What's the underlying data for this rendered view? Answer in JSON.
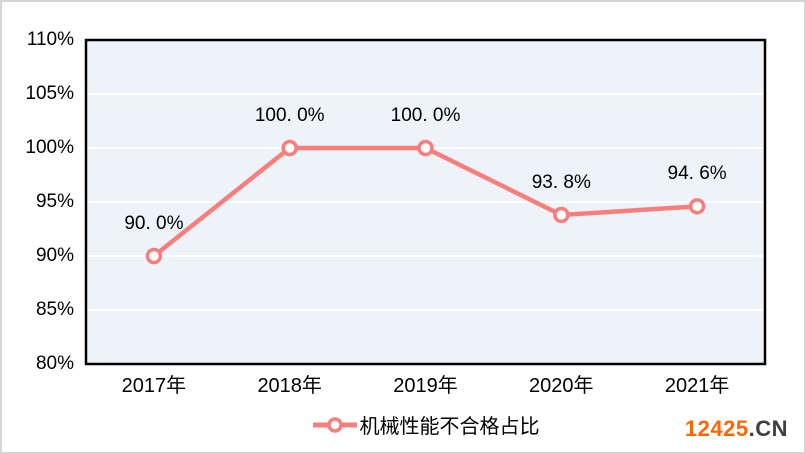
{
  "chart_data": {
    "type": "line",
    "title": "",
    "categories": [
      "2017年",
      "2018年",
      "2019年",
      "2020年",
      "2021年"
    ],
    "series": [
      {
        "name": "机械性能不合格占比",
        "values": [
          90.0,
          100.0,
          100.0,
          93.8,
          94.6
        ]
      }
    ],
    "data_labels": [
      "90. 0%",
      "100. 0%",
      "100. 0%",
      "93. 8%",
      "94. 6%"
    ],
    "y_tick_labels": [
      "110%",
      "105%",
      "100%",
      "95%",
      "90%",
      "85%",
      "80%"
    ],
    "y_tick_values": [
      110,
      105,
      100,
      95,
      90,
      85,
      80
    ],
    "ylim": [
      80,
      110
    ],
    "grid": true,
    "legend_position": "bottom",
    "marker": "open-circle",
    "colors": {
      "line": "#F87E7E",
      "marker_fill": "#FFFFFF",
      "plot_bg": "#EDF3F8",
      "gridline": "#FFFFFF",
      "plot_border": "#000000",
      "label_text": "#000000"
    }
  },
  "legend": {
    "label": "机械性能不合格占比"
  },
  "watermark": {
    "number": "12425",
    "suffix": ".CN",
    "number_color": "#FF6600",
    "suffix_color": "#3F3F3F"
  }
}
